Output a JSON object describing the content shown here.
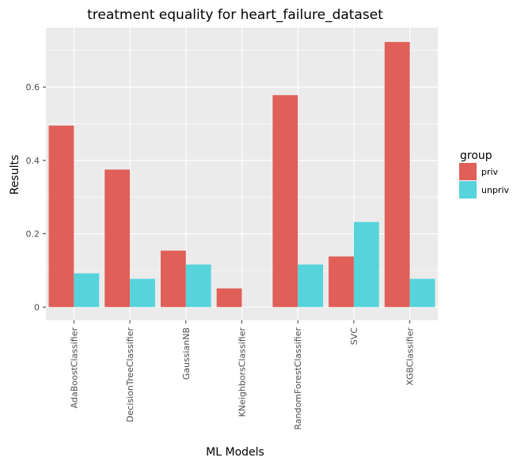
{
  "chart_data": {
    "type": "bar",
    "title": "treatment equality for heart_failure_dataset",
    "xlabel": "ML Models",
    "ylabel": "Results",
    "categories": [
      "AdaBoostClassifier",
      "DecisionTreeClassifier",
      "GaussianNB",
      "KNeighborsClassifier",
      "RandomForestClassifier",
      "SVC",
      "XGBClassifier"
    ],
    "series": [
      {
        "name": "priv",
        "color": "#e05f58",
        "values": [
          0.495,
          0.375,
          0.154,
          0.051,
          0.578,
          0.138,
          0.723
        ]
      },
      {
        "name": "unpriv",
        "color": "#56d3db",
        "values": [
          0.092,
          0.077,
          0.116,
          0.0,
          0.116,
          0.232,
          0.077
        ]
      }
    ],
    "yticks": [
      "0",
      "0.2",
      "0.4",
      "0.6"
    ],
    "ytick_values": [
      0,
      0.2,
      0.4,
      0.6
    ],
    "ylim": [
      -0.036,
      0.762
    ],
    "grid": true,
    "legend": {
      "title": "group",
      "placement": "right"
    },
    "panel_color": "#ebebeb"
  }
}
